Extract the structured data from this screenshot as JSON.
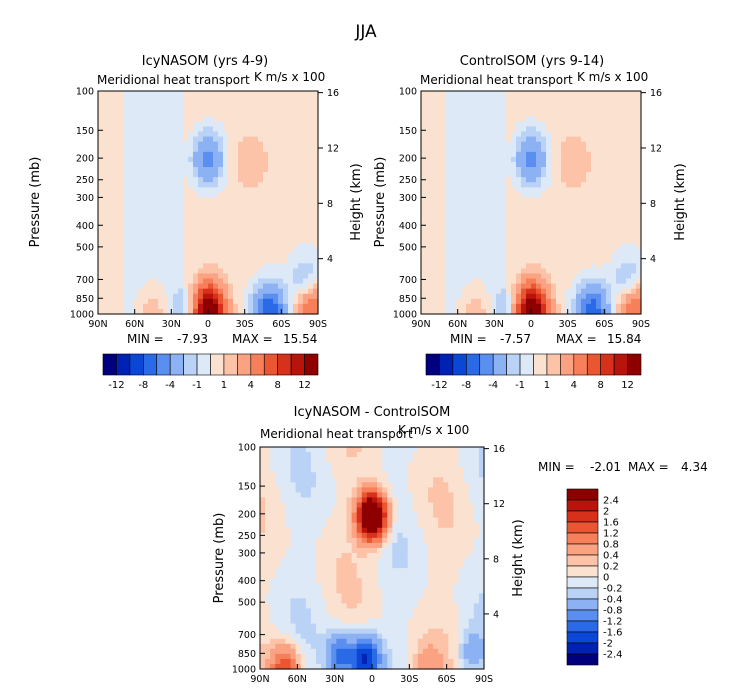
{
  "figure": {
    "title": "JJA"
  },
  "chart_data": [
    {
      "type": "heatmap",
      "title": "IcyNASOM (yrs 4-9)",
      "subtitle": "Meridional heat transport",
      "units_label": "K m/s x 100",
      "ylabel": "Pressure (mb)",
      "ylabel_right": "Height (km)",
      "x_ticks": [
        "90N",
        "60N",
        "30N",
        "0",
        "30S",
        "60S",
        "90S"
      ],
      "y_ticks": [
        100,
        150,
        200,
        250,
        300,
        400,
        500,
        700,
        850,
        1000
      ],
      "y_right_ticks": [
        16,
        12,
        8,
        4
      ],
      "xlim": [
        90,
        -90
      ],
      "ylim": [
        1000,
        100
      ],
      "y_scale": "log",
      "stats": {
        "min_text": "MIN =",
        "min": "-7.93",
        "max_text": "MAX =",
        "max": "15.54"
      },
      "colorbar": {
        "orientation": "horizontal",
        "ticks": [
          "-12",
          "-8",
          "-4",
          "-1",
          "1",
          "4",
          "8",
          "12"
        ]
      },
      "features": [
        {
          "lat": 0,
          "p": 980,
          "value": 15.54
        },
        {
          "lat": 0,
          "p": 200,
          "value": -5
        },
        {
          "lat": -35,
          "p": 210,
          "value": 1.5
        },
        {
          "lat": -50,
          "p": 980,
          "value": -7.93
        },
        {
          "lat": 15,
          "p": 980,
          "value": -3
        },
        {
          "lat": 45,
          "p": 990,
          "value": 2
        },
        {
          "lat": -85,
          "p": 950,
          "value": 6
        },
        {
          "lat": -80,
          "p": 720,
          "value": -3
        }
      ]
    },
    {
      "type": "heatmap",
      "title": "ControlSOM (yrs 9-14)",
      "subtitle": "Meridional heat transport",
      "units_label": "K m/s x 100",
      "ylabel": "Pressure (mb)",
      "ylabel_right": "Height (km)",
      "x_ticks": [
        "90N",
        "60N",
        "30N",
        "0",
        "30S",
        "60S",
        "90S"
      ],
      "y_ticks": [
        100,
        150,
        200,
        250,
        300,
        400,
        500,
        700,
        850,
        1000
      ],
      "y_right_ticks": [
        16,
        12,
        8,
        4
      ],
      "xlim": [
        90,
        -90
      ],
      "ylim": [
        1000,
        100
      ],
      "y_scale": "log",
      "stats": {
        "min_text": "MIN =",
        "min": "-7.57",
        "max_text": "MAX =",
        "max": "15.84"
      },
      "colorbar": {
        "orientation": "horizontal",
        "ticks": [
          "-12",
          "-8",
          "-4",
          "-1",
          "1",
          "4",
          "8",
          "12"
        ]
      },
      "features": [
        {
          "lat": 0,
          "p": 980,
          "value": 15.84
        },
        {
          "lat": 0,
          "p": 200,
          "value": -5
        },
        {
          "lat": -35,
          "p": 210,
          "value": 1.5
        },
        {
          "lat": -50,
          "p": 980,
          "value": -7.57
        },
        {
          "lat": 15,
          "p": 980,
          "value": -3
        },
        {
          "lat": 45,
          "p": 990,
          "value": 2
        },
        {
          "lat": -85,
          "p": 950,
          "value": 6
        },
        {
          "lat": -80,
          "p": 720,
          "value": -3
        }
      ]
    },
    {
      "type": "heatmap",
      "title": "IcyNASOM - ControlSOM",
      "subtitle": "Meridional heat transport",
      "units_label": "K m/s x 100",
      "ylabel": "Pressure (mb)",
      "ylabel_right": "Height (km)",
      "x_ticks": [
        "90N",
        "60N",
        "30N",
        "0",
        "30S",
        "60S",
        "90S"
      ],
      "y_ticks": [
        100,
        150,
        200,
        250,
        300,
        400,
        500,
        700,
        850,
        1000
      ],
      "y_right_ticks": [
        16,
        12,
        8,
        4
      ],
      "xlim": [
        90,
        -90
      ],
      "ylim": [
        1000,
        100
      ],
      "y_scale": "log",
      "stats": {
        "min_text": "MIN =",
        "min": "-2.01",
        "max_text": "MAX =",
        "max": "4.34"
      },
      "colorbar": {
        "orientation": "vertical",
        "ticks": [
          "2.4",
          "2",
          "1.6",
          "1.2",
          "0.8",
          "0.4",
          "0.2",
          "0",
          "-0.2",
          "-0.4",
          "-0.8",
          "-1.2",
          "-1.6",
          "-2",
          "-2.4"
        ]
      },
      "features": [
        {
          "lat": 0,
          "p": 205,
          "value": 4.34
        },
        {
          "lat": 5,
          "p": 900,
          "value": -2.01
        },
        {
          "lat": 25,
          "p": 880,
          "value": -1.4
        },
        {
          "lat": 70,
          "p": 995,
          "value": 1.5
        },
        {
          "lat": -45,
          "p": 990,
          "value": 0.6
        },
        {
          "lat": -80,
          "p": 850,
          "value": -0.6
        }
      ]
    }
  ],
  "colors": {
    "scale1": [
      "#00007e",
      "#0022b4",
      "#0a47d6",
      "#2b6ae6",
      "#5a8ff0",
      "#8cb2f4",
      "#b9d2f5",
      "#dde9f7",
      "#fbe2d0",
      "#fcc3a8",
      "#fba282",
      "#f77f5a",
      "#eb5632",
      "#d7301b",
      "#b8140c",
      "#8e0000"
    ],
    "scale2": [
      "#8e0000",
      "#b8140c",
      "#d7301b",
      "#eb5632",
      "#f77f5a",
      "#fba282",
      "#fcc3a8",
      "#fbe2d0",
      "#dde9f7",
      "#b9d2f5",
      "#8cb2f4",
      "#5a8ff0",
      "#2b6ae6",
      "#0a47d6",
      "#0022b4",
      "#00007e"
    ]
  }
}
